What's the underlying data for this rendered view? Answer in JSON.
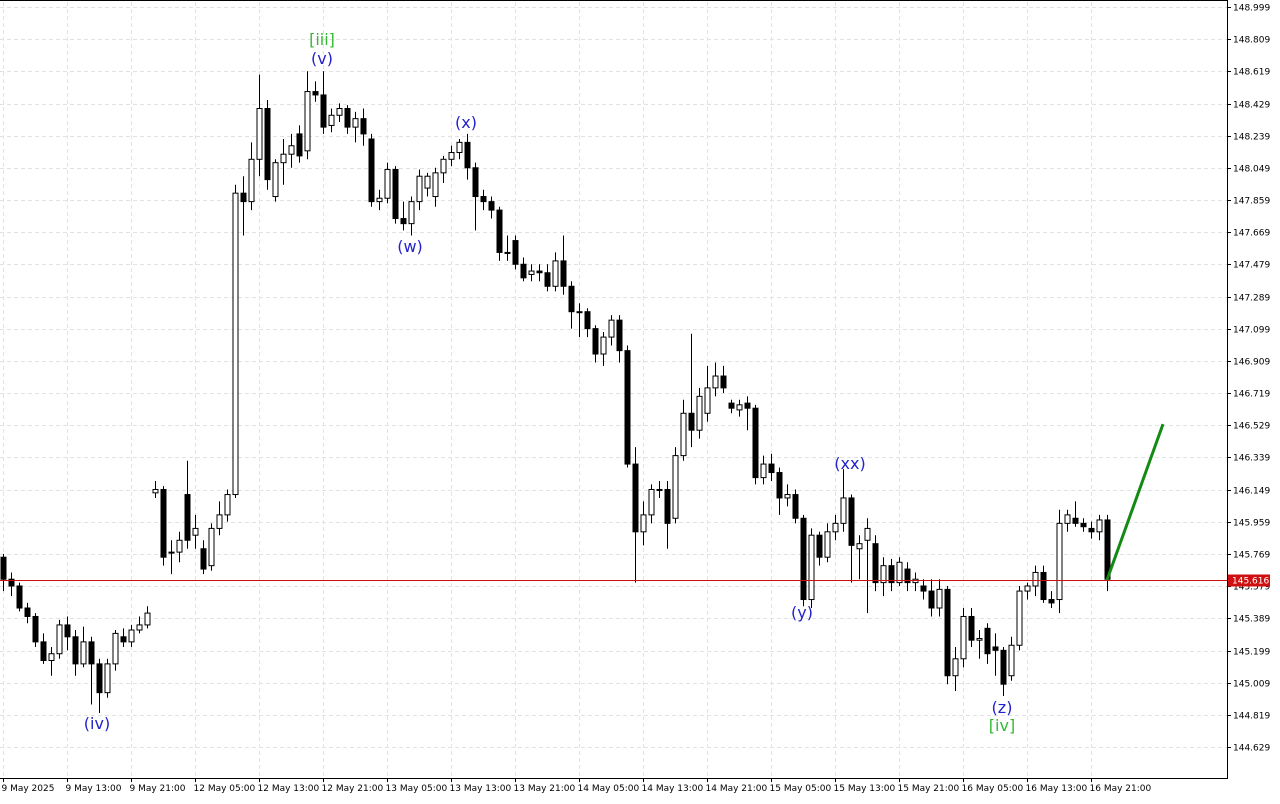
{
  "chart_data": {
    "type": "candlestick",
    "categories": [
      "9 May 2025",
      null,
      null,
      null,
      null,
      null,
      null,
      null,
      "9 May 13:00",
      null,
      null,
      null,
      null,
      null,
      null,
      null,
      "9 May 21:00",
      null,
      null,
      null,
      null,
      null,
      null,
      null,
      "12 May 05:00",
      null,
      null,
      null,
      null,
      null,
      null,
      null,
      "12 May 13:00",
      null,
      null,
      null,
      null,
      null,
      null,
      null,
      "12 May 21:00",
      null,
      null,
      null,
      null,
      null,
      null,
      null,
      "13 May 05:00",
      null,
      null,
      null,
      null,
      null,
      null,
      null,
      "13 May 13:00",
      null,
      null,
      null,
      null,
      null,
      null,
      null,
      "13 May 21:00",
      null,
      null,
      null,
      null,
      null,
      null,
      null,
      "14 May 05:00",
      null,
      null,
      null,
      null,
      null,
      null,
      null,
      "14 May 13:00",
      null,
      null,
      null,
      null,
      null,
      null,
      null,
      "14 May 21:00",
      null,
      null,
      null,
      null,
      null,
      null,
      null,
      "15 May 05:00",
      null,
      null,
      null,
      null,
      null,
      null,
      null,
      "15 May 13:00",
      null,
      null,
      null,
      null,
      null,
      null,
      null,
      "15 May 21:00",
      null,
      null,
      null,
      null,
      null,
      null,
      null,
      "16 May 05:00",
      null,
      null,
      null,
      null,
      null,
      null,
      null,
      "16 May 13:00",
      null,
      null,
      null,
      null,
      null,
      null,
      null,
      "16 May 21:00",
      null,
      null
    ],
    "ohlc": [
      [
        145.75,
        145.77,
        145.55,
        145.62
      ],
      [
        145.62,
        145.66,
        145.52,
        145.58
      ],
      [
        145.58,
        145.6,
        145.43,
        145.45
      ],
      [
        145.45,
        145.48,
        145.36,
        145.4
      ],
      [
        145.4,
        145.42,
        145.22,
        145.25
      ],
      [
        145.25,
        145.3,
        145.12,
        145.14
      ],
      [
        145.14,
        145.22,
        145.05,
        145.18
      ],
      [
        145.18,
        145.38,
        145.15,
        145.35
      ],
      [
        145.35,
        145.4,
        145.2,
        145.28
      ],
      [
        145.28,
        145.32,
        145.05,
        145.12
      ],
      [
        145.12,
        145.34,
        145.1,
        145.25
      ],
      [
        145.25,
        145.28,
        144.88,
        145.12
      ],
      [
        145.12,
        145.15,
        144.83,
        144.95
      ],
      [
        144.95,
        145.15,
        144.92,
        145.12
      ],
      [
        145.12,
        145.32,
        145.08,
        145.3
      ],
      [
        145.28,
        145.33,
        145.22,
        145.25
      ],
      [
        145.25,
        145.35,
        145.22,
        145.32
      ],
      [
        145.32,
        145.4,
        145.3,
        145.35
      ],
      [
        145.35,
        145.46,
        145.33,
        145.42
      ],
      [
        146.13,
        146.2,
        146.1,
        146.15
      ],
      [
        146.15,
        146.17,
        145.7,
        145.75
      ],
      [
        145.78,
        145.85,
        145.65,
        145.78
      ],
      [
        145.78,
        145.9,
        145.72,
        145.85
      ],
      [
        146.12,
        146.32,
        145.8,
        145.85
      ],
      [
        145.88,
        146.0,
        145.8,
        145.92
      ],
      [
        145.8,
        145.85,
        145.65,
        145.68
      ],
      [
        145.7,
        145.95,
        145.67,
        145.92
      ],
      [
        145.92,
        146.08,
        145.88,
        146.0
      ],
      [
        146.0,
        146.15,
        145.96,
        146.12
      ],
      [
        146.12,
        147.95,
        146.1,
        147.9
      ],
      [
        147.9,
        148.0,
        147.65,
        147.85
      ],
      [
        147.85,
        148.2,
        147.8,
        148.1
      ],
      [
        148.1,
        148.6,
        148.0,
        148.4
      ],
      [
        148.4,
        148.45,
        147.92,
        147.98
      ],
      [
        147.88,
        148.1,
        147.85,
        148.08
      ],
      [
        148.08,
        148.22,
        147.95,
        148.13
      ],
      [
        148.13,
        148.25,
        148.05,
        148.18
      ],
      [
        148.25,
        148.3,
        148.08,
        148.12
      ],
      [
        148.15,
        148.62,
        148.1,
        148.5
      ],
      [
        148.5,
        148.56,
        148.44,
        148.48
      ],
      [
        148.48,
        148.62,
        148.25,
        148.29
      ],
      [
        148.3,
        148.4,
        148.26,
        148.36
      ],
      [
        148.36,
        148.43,
        148.32,
        148.4
      ],
      [
        148.4,
        148.42,
        148.25,
        148.29
      ],
      [
        148.29,
        148.38,
        148.2,
        148.34
      ],
      [
        148.34,
        148.4,
        148.18,
        148.25
      ],
      [
        148.22,
        148.25,
        147.82,
        147.85
      ],
      [
        147.85,
        147.92,
        147.8,
        147.87
      ],
      [
        147.87,
        148.08,
        147.84,
        148.04
      ],
      [
        148.04,
        148.06,
        147.72,
        147.75
      ],
      [
        147.75,
        147.85,
        147.68,
        147.72
      ],
      [
        147.72,
        147.88,
        147.65,
        147.85
      ],
      [
        147.85,
        148.04,
        147.8,
        148.0
      ],
      [
        147.93,
        148.02,
        147.88,
        148.0
      ],
      [
        147.88,
        148.05,
        147.82,
        148.02
      ],
      [
        148.02,
        148.12,
        147.96,
        148.1
      ],
      [
        148.1,
        148.18,
        148.06,
        148.14
      ],
      [
        148.14,
        148.22,
        148.1,
        148.2
      ],
      [
        148.2,
        148.25,
        147.98,
        148.05
      ],
      [
        148.05,
        148.08,
        147.68,
        147.88
      ],
      [
        147.88,
        147.92,
        147.8,
        147.85
      ],
      [
        147.85,
        147.88,
        147.75,
        147.8
      ],
      [
        147.8,
        147.82,
        147.5,
        147.55
      ],
      [
        147.55,
        147.65,
        147.5,
        147.55
      ],
      [
        147.62,
        147.65,
        147.45,
        147.48
      ],
      [
        147.48,
        147.52,
        147.38,
        147.4
      ],
      [
        147.42,
        147.48,
        147.38,
        147.44
      ],
      [
        147.44,
        147.48,
        147.38,
        147.43
      ],
      [
        147.43,
        147.48,
        147.32,
        147.35
      ],
      [
        147.35,
        147.55,
        147.32,
        147.5
      ],
      [
        147.5,
        147.65,
        147.3,
        147.35
      ],
      [
        147.35,
        147.38,
        147.1,
        147.2
      ],
      [
        147.2,
        147.25,
        147.05,
        147.2
      ],
      [
        147.2,
        147.22,
        147.05,
        147.1
      ],
      [
        147.1,
        147.12,
        146.9,
        146.95
      ],
      [
        146.95,
        147.08,
        146.88,
        147.05
      ],
      [
        147.05,
        147.18,
        147.0,
        147.15
      ],
      [
        147.15,
        147.18,
        146.9,
        146.97
      ],
      [
        146.97,
        147.0,
        146.28,
        146.3
      ],
      [
        146.3,
        146.4,
        145.6,
        145.9
      ],
      [
        145.9,
        146.08,
        145.82,
        146.0
      ],
      [
        146.0,
        146.18,
        145.95,
        146.15
      ],
      [
        146.15,
        146.2,
        146.1,
        146.15
      ],
      [
        146.15,
        146.2,
        145.8,
        145.95
      ],
      [
        145.98,
        146.4,
        145.95,
        146.35
      ],
      [
        146.35,
        146.68,
        146.32,
        146.6
      ],
      [
        146.6,
        147.07,
        146.4,
        146.5
      ],
      [
        146.5,
        146.75,
        146.45,
        146.7
      ],
      [
        146.6,
        146.88,
        146.55,
        146.75
      ],
      [
        146.75,
        146.9,
        146.7,
        146.82
      ],
      [
        146.82,
        146.88,
        146.72,
        146.75
      ],
      [
        146.66,
        146.68,
        146.6,
        146.63
      ],
      [
        146.62,
        146.68,
        146.58,
        146.65
      ],
      [
        146.66,
        146.7,
        146.5,
        146.63
      ],
      [
        146.63,
        146.65,
        146.18,
        146.22
      ],
      [
        146.22,
        146.35,
        146.18,
        146.3
      ],
      [
        146.3,
        146.36,
        146.2,
        146.25
      ],
      [
        146.25,
        146.28,
        146.0,
        146.1
      ],
      [
        146.1,
        146.18,
        146.05,
        146.12
      ],
      [
        146.12,
        146.15,
        145.95,
        145.98
      ],
      [
        145.98,
        146.0,
        145.46,
        145.5
      ],
      [
        145.5,
        145.92,
        145.45,
        145.88
      ],
      [
        145.88,
        145.9,
        145.7,
        145.75
      ],
      [
        145.75,
        145.95,
        145.72,
        145.9
      ],
      [
        145.9,
        146.0,
        145.85,
        145.95
      ],
      [
        145.95,
        146.27,
        145.9,
        146.1
      ],
      [
        146.1,
        146.12,
        145.6,
        145.82
      ],
      [
        145.8,
        145.88,
        145.62,
        145.83
      ],
      [
        145.85,
        145.98,
        145.42,
        145.92
      ],
      [
        145.83,
        145.88,
        145.55,
        145.6
      ],
      [
        145.6,
        145.75,
        145.52,
        145.7
      ],
      [
        145.7,
        145.74,
        145.55,
        145.6
      ],
      [
        145.6,
        145.75,
        145.58,
        145.72
      ],
      [
        145.68,
        145.72,
        145.55,
        145.6
      ],
      [
        145.6,
        145.66,
        145.55,
        145.62
      ],
      [
        145.58,
        145.62,
        145.5,
        145.55
      ],
      [
        145.55,
        145.62,
        145.4,
        145.45
      ],
      [
        145.45,
        145.62,
        145.4,
        145.56
      ],
      [
        145.56,
        145.58,
        145.0,
        145.05
      ],
      [
        145.05,
        145.22,
        144.96,
        145.15
      ],
      [
        145.15,
        145.45,
        145.1,
        145.4
      ],
      [
        145.4,
        145.45,
        145.22,
        145.26
      ],
      [
        145.26,
        145.32,
        145.15,
        145.27
      ],
      [
        145.33,
        145.36,
        145.12,
        145.18
      ],
      [
        145.22,
        145.3,
        145.05,
        145.2
      ],
      [
        145.2,
        145.22,
        144.93,
        145.0
      ],
      [
        145.05,
        145.28,
        145.02,
        145.23
      ],
      [
        145.23,
        145.58,
        145.2,
        145.55
      ],
      [
        145.55,
        145.6,
        145.5,
        145.58
      ],
      [
        145.58,
        145.7,
        145.52,
        145.66
      ],
      [
        145.66,
        145.7,
        145.48,
        145.5
      ],
      [
        145.5,
        145.55,
        145.45,
        145.48
      ],
      [
        145.5,
        146.03,
        145.42,
        145.95
      ],
      [
        145.95,
        146.03,
        145.9,
        146.0
      ],
      [
        145.98,
        146.08,
        145.93,
        145.95
      ],
      [
        145.95,
        145.98,
        145.9,
        145.93
      ],
      [
        145.92,
        145.96,
        145.86,
        145.9
      ],
      [
        145.9,
        146.0,
        145.85,
        145.97
      ],
      [
        145.97,
        146.0,
        145.55,
        145.62
      ]
    ],
    "ylim": [
      144.446,
      149.029
    ],
    "yticks": [
      148.999,
      148.809,
      148.619,
      148.429,
      148.239,
      148.049,
      147.859,
      147.669,
      147.479,
      147.289,
      147.099,
      146.909,
      146.719,
      146.529,
      146.339,
      146.149,
      145.959,
      145.769,
      145.579,
      145.389,
      145.199,
      145.009,
      144.819,
      144.629
    ],
    "grid": true,
    "last_price": {
      "value": 145.616,
      "color": "#d01010"
    },
    "forecast": {
      "values": [
        145.616,
        146.536
      ],
      "color": "#138a13"
    },
    "annotations": [
      {
        "text": "[iii]",
        "color": "#33bb33"
      },
      {
        "text": "(v)",
        "color": "#2222cc"
      },
      {
        "text": "(x)",
        "color": "#2222cc"
      },
      {
        "text": "(w)",
        "color": "#2222cc"
      },
      {
        "text": "(iv)",
        "color": "#2222cc"
      },
      {
        "text": "(y)",
        "color": "#2222cc"
      },
      {
        "text": "(xx)",
        "color": "#2222cc"
      },
      {
        "text": "(z)",
        "color": "#2222cc"
      },
      {
        "text": "[iv]",
        "color": "#33bb33"
      }
    ]
  }
}
